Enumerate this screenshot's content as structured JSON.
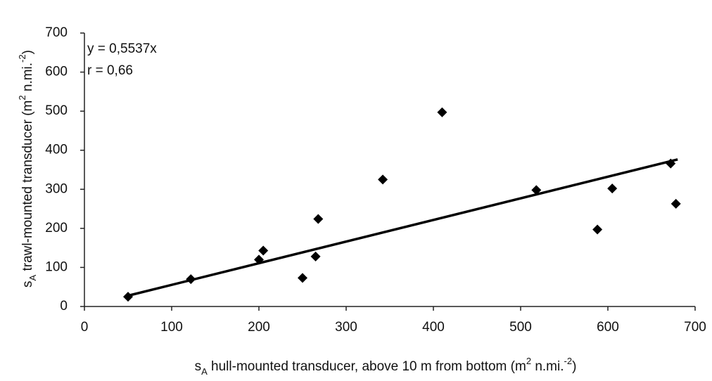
{
  "chart_data": {
    "type": "scatter",
    "x_label": [
      {
        "text": "s"
      },
      {
        "text": "A",
        "script": "sub"
      },
      {
        "text": " hull-mounted transducer, above 10 m from bottom (m"
      },
      {
        "text": "2",
        "script": "super"
      },
      {
        "text": " n.mi."
      },
      {
        "text": "-2",
        "script": "super"
      },
      {
        "text": ")"
      }
    ],
    "y_label": [
      {
        "text": "s"
      },
      {
        "text": "A",
        "script": "sub"
      },
      {
        "text": " trawl-mounted transducer (m"
      },
      {
        "text": "2",
        "script": "super"
      },
      {
        "text": " n.mi."
      },
      {
        "text": "-2",
        "script": "super"
      },
      {
        "text": ")"
      }
    ],
    "annotations": [
      "y = 0,5537x",
      "r = 0,66"
    ],
    "series": [
      {
        "color": "#000000",
        "x": [
          50,
          122,
          200,
          205,
          250,
          265,
          268,
          342,
          410,
          518,
          588,
          605,
          672,
          678
        ],
        "y": [
          25,
          70,
          120,
          143,
          73,
          128,
          224,
          325,
          497,
          298,
          197,
          302,
          366,
          263
        ]
      }
    ],
    "trendline": {
      "slope": 0.5537,
      "x_range": [
        50,
        680
      ],
      "color": "#000000"
    },
    "xlim": [
      0,
      700
    ],
    "xticks": [
      0,
      100,
      200,
      300,
      400,
      500,
      600,
      700
    ],
    "ylim": [
      0,
      700
    ],
    "yticks": [
      0,
      100,
      200,
      300,
      400,
      500,
      600,
      700
    ],
    "grid": false
  }
}
